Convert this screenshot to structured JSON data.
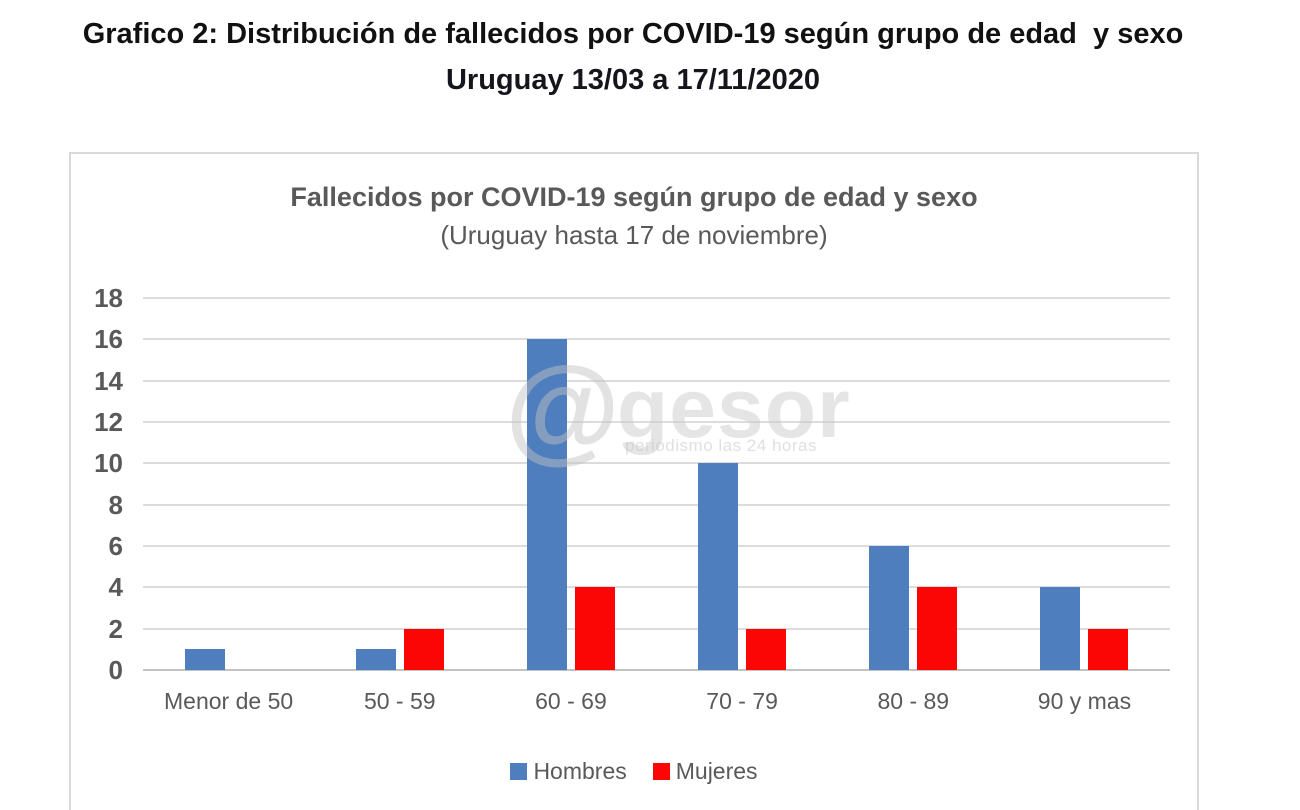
{
  "page_header": {
    "line1": "Grafico 2: Distribución de fallecidos por COVID-19 según grupo de edad  y sexo",
    "line2": "Uruguay 13/03 a 17/11/2020"
  },
  "watermark": {
    "at_symbol": "@",
    "name": "gesor",
    "tagline": "periodismo las 24 horas"
  },
  "chart_data": {
    "type": "bar",
    "title": "Fallecidos por COVID-19 según grupo de edad y sexo",
    "subtitle": "(Uruguay hasta 17 de noviembre)",
    "categories": [
      "Menor de 50",
      "50 - 59",
      "60 - 69",
      "70 - 79",
      "80 - 89",
      "90 y mas"
    ],
    "series": [
      {
        "name": "Hombres",
        "color": "#4e7ebe",
        "values": [
          1,
          1,
          16,
          10,
          6,
          4
        ]
      },
      {
        "name": "Mujeres",
        "color": "#fb0505",
        "values": [
          0,
          2,
          4,
          2,
          4,
          2
        ]
      }
    ],
    "ylim": [
      0,
      18
    ],
    "ytick_step": 2,
    "grid": true,
    "legend_position": "bottom",
    "colors": {
      "axis_text": "#595959",
      "gridline": "#dcdcdc",
      "zero_line": "#c3c3c3"
    }
  }
}
